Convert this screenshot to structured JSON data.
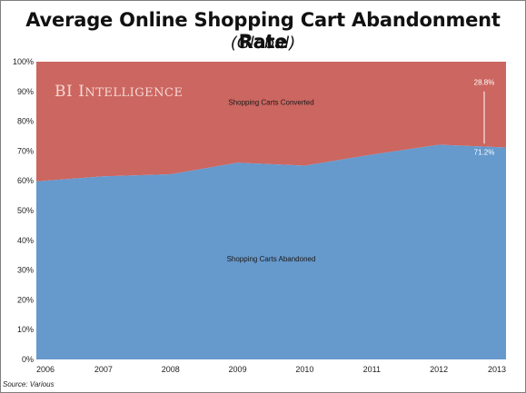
{
  "chart_data": {
    "type": "area",
    "title": "Average Online Shopping Cart Abandonment Rate",
    "subtitle": "(Global)",
    "x": [
      "2006",
      "2007",
      "2008",
      "2009",
      "2010",
      "2011",
      "2012",
      "2013"
    ],
    "series": [
      {
        "name": "Shopping Carts Abandoned",
        "values": [
          59.8,
          61.5,
          62.2,
          66.1,
          65.1,
          68.8,
          72.1,
          71.2
        ],
        "color": "#6699cc"
      },
      {
        "name": "Shopping Carts Converted",
        "values": [
          40.2,
          38.5,
          37.8,
          33.9,
          34.9,
          31.2,
          27.9,
          28.8
        ],
        "color": "#cc6660"
      }
    ],
    "stacked": true,
    "ylim": [
      0,
      100
    ],
    "y_ticks": [
      "0%",
      "10%",
      "20%",
      "30%",
      "40%",
      "50%",
      "60%",
      "70%",
      "80%",
      "90%",
      "100%"
    ],
    "grid": false,
    "legend": "none",
    "annotations": {
      "converted_2013": "28.8%",
      "abandoned_2013": "71.2%"
    },
    "watermark": "BI Intelligence",
    "source": "Source: Various"
  }
}
